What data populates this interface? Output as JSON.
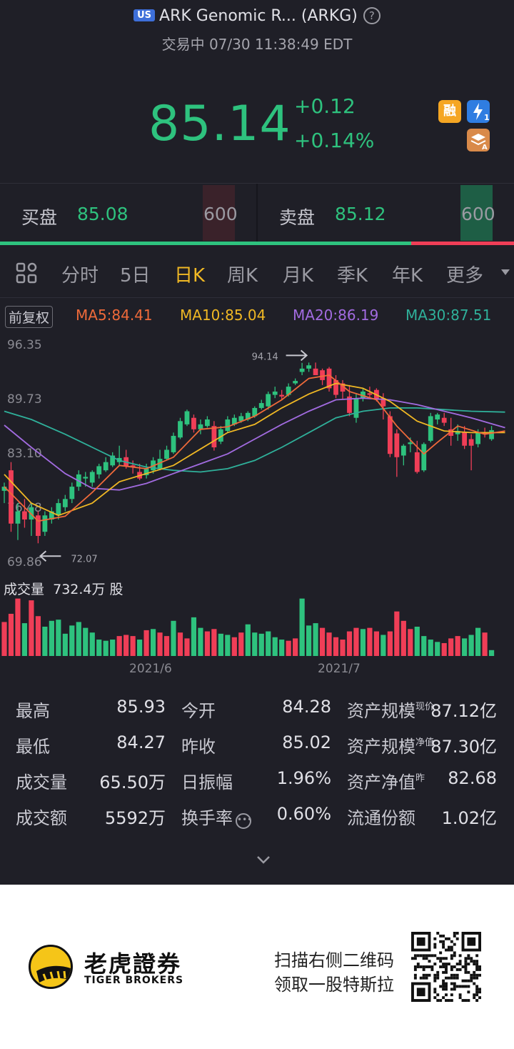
{
  "header": {
    "market_badge": "US",
    "title": "ARK Genomic R... (ARKG)",
    "help_icon": "help-icon",
    "status": "交易中 07/30 11:38:49 EDT",
    "price": "85.14",
    "change": "+0.12",
    "change_pct": "+0.14%",
    "badges": [
      {
        "name": "margin-badge-icon",
        "text": "融",
        "color": "#f5a623"
      },
      {
        "name": "level1-quote-icon",
        "text": "⚡1",
        "color": "#2f7de1"
      },
      {
        "name": "layers-a-icon",
        "text": "A",
        "color": "#d98a4a"
      }
    ]
  },
  "orderbook": {
    "bid_label": "买盘",
    "bid_price": "85.08",
    "bid_qty": "600",
    "ask_label": "卖盘",
    "ask_price": "85.12",
    "ask_qty": "600"
  },
  "tabs": [
    "分时",
    "5日",
    "日K",
    "周K",
    "月K",
    "季K",
    "年K",
    "更多"
  ],
  "active_tab": "日K",
  "ma": {
    "adjust_label": "前复权",
    "ma5": "MA5:84.41",
    "ma10": "MA10:85.04",
    "ma20": "MA20:86.19",
    "ma30": "MA30:87.51",
    "colors": {
      "ma5": "#ef6a3a",
      "ma10": "#f0b824",
      "ma20": "#a26be0",
      "ma30": "#2fb09a"
    }
  },
  "chart_data": {
    "type": "candlestick",
    "y_ticks": [
      "96.35",
      "89.73",
      "83.10",
      "76.48",
      "69.86"
    ],
    "x_ticks": [
      "2021/6",
      "2021/7"
    ],
    "high_marker": "94.14",
    "low_marker": "72.07",
    "volume_label": "成交量",
    "volume_value": "732.4万 股",
    "ylim": [
      69.86,
      96.35
    ],
    "up_color": "#2ec27e",
    "down_color": "#f03e57",
    "candles": [
      {
        "o": 78.5,
        "h": 79.5,
        "l": 77,
        "c": 79
      },
      {
        "o": 81,
        "h": 82,
        "l": 73.5,
        "c": 74.5
      },
      {
        "o": 74.5,
        "h": 77,
        "l": 72.5,
        "c": 76
      },
      {
        "o": 76,
        "h": 77.5,
        "l": 74,
        "c": 75
      },
      {
        "o": 75,
        "h": 77,
        "l": 73,
        "c": 76.5
      },
      {
        "o": 75.5,
        "h": 76,
        "l": 72.1,
        "c": 73
      },
      {
        "o": 73.5,
        "h": 76,
        "l": 73,
        "c": 75.5
      },
      {
        "o": 75,
        "h": 76.5,
        "l": 74.5,
        "c": 76
      },
      {
        "o": 75.5,
        "h": 77.5,
        "l": 75,
        "c": 77
      },
      {
        "o": 76.5,
        "h": 78,
        "l": 76,
        "c": 77.5
      },
      {
        "o": 77.5,
        "h": 79.5,
        "l": 77,
        "c": 79
      },
      {
        "o": 79,
        "h": 81,
        "l": 78.5,
        "c": 80.5
      },
      {
        "o": 80,
        "h": 80.8,
        "l": 79,
        "c": 80.2
      },
      {
        "o": 79.5,
        "h": 81,
        "l": 79,
        "c": 80.8
      },
      {
        "o": 80.5,
        "h": 81.8,
        "l": 80,
        "c": 81.5
      },
      {
        "o": 81,
        "h": 82.6,
        "l": 80.8,
        "c": 82
      },
      {
        "o": 81.6,
        "h": 83.2,
        "l": 81.4,
        "c": 82.8
      },
      {
        "o": 82,
        "h": 84,
        "l": 81.6,
        "c": 82.5
      },
      {
        "o": 82.6,
        "h": 83.5,
        "l": 81.2,
        "c": 81.5
      },
      {
        "o": 81.6,
        "h": 82.2,
        "l": 80.6,
        "c": 81.4
      },
      {
        "o": 80.8,
        "h": 81.8,
        "l": 79.8,
        "c": 80
      },
      {
        "o": 80.4,
        "h": 81.8,
        "l": 80,
        "c": 81.2
      },
      {
        "o": 81,
        "h": 82.6,
        "l": 80.6,
        "c": 82.2
      },
      {
        "o": 81.2,
        "h": 83.5,
        "l": 81,
        "c": 82.4
      },
      {
        "o": 82.4,
        "h": 84,
        "l": 82.2,
        "c": 83.5
      },
      {
        "o": 83.2,
        "h": 85.6,
        "l": 83,
        "c": 85.2
      },
      {
        "o": 85,
        "h": 87.4,
        "l": 84.8,
        "c": 87
      },
      {
        "o": 86.6,
        "h": 88.4,
        "l": 86.4,
        "c": 88.2
      },
      {
        "o": 87.4,
        "h": 87.8,
        "l": 85.6,
        "c": 86
      },
      {
        "o": 86,
        "h": 87.2,
        "l": 85.4,
        "c": 86.6
      },
      {
        "o": 86.4,
        "h": 87.6,
        "l": 86.2,
        "c": 87.2
      },
      {
        "o": 86.4,
        "h": 87,
        "l": 83.4,
        "c": 83.8
      },
      {
        "o": 84.5,
        "h": 86.4,
        "l": 84.2,
        "c": 86
      },
      {
        "o": 85.8,
        "h": 87.6,
        "l": 85.6,
        "c": 87.2
      },
      {
        "o": 86.6,
        "h": 87.8,
        "l": 86.4,
        "c": 87.4
      },
      {
        "o": 87,
        "h": 88,
        "l": 86.8,
        "c": 87.6
      },
      {
        "o": 87.2,
        "h": 88.2,
        "l": 87,
        "c": 88
      },
      {
        "o": 87.6,
        "h": 88.8,
        "l": 87.4,
        "c": 88.6
      },
      {
        "o": 88.6,
        "h": 89.6,
        "l": 88.4,
        "c": 89.2
      },
      {
        "o": 88.8,
        "h": 90.6,
        "l": 88.4,
        "c": 90.3
      },
      {
        "o": 90.2,
        "h": 91.2,
        "l": 89.8,
        "c": 90.6
      },
      {
        "o": 90.2,
        "h": 90.8,
        "l": 89.6,
        "c": 90
      },
      {
        "o": 90.2,
        "h": 91.6,
        "l": 90,
        "c": 91.2
      },
      {
        "o": 91.6,
        "h": 92.2,
        "l": 91.4,
        "c": 91.9
      },
      {
        "o": 93,
        "h": 94.1,
        "l": 92.6,
        "c": 93.4
      },
      {
        "o": 93.4,
        "h": 94.14,
        "l": 93,
        "c": 93.8
      },
      {
        "o": 93.4,
        "h": 94.14,
        "l": 92.6,
        "c": 92.6
      },
      {
        "o": 93.2,
        "h": 93.4,
        "l": 91.4,
        "c": 92
      },
      {
        "o": 93.4,
        "h": 93.6,
        "l": 90.6,
        "c": 91
      },
      {
        "o": 92,
        "h": 92.6,
        "l": 89.8,
        "c": 90.2
      },
      {
        "o": 91.6,
        "h": 92,
        "l": 89.6,
        "c": 90.6
      },
      {
        "o": 90,
        "h": 91.4,
        "l": 87.6,
        "c": 88
      },
      {
        "o": 87.4,
        "h": 90.4,
        "l": 86.8,
        "c": 89.8
      },
      {
        "o": 89.8,
        "h": 91,
        "l": 89.4,
        "c": 90.6
      },
      {
        "o": 90.4,
        "h": 91.2,
        "l": 89.8,
        "c": 90.2
      },
      {
        "o": 90.8,
        "h": 91,
        "l": 89.4,
        "c": 89.6
      },
      {
        "o": 89.8,
        "h": 90.4,
        "l": 87.2,
        "c": 88.8
      },
      {
        "o": 87.6,
        "h": 88.2,
        "l": 82.6,
        "c": 83
      },
      {
        "o": 85.5,
        "h": 86,
        "l": 80.2,
        "c": 82.6
      },
      {
        "o": 82.8,
        "h": 84.2,
        "l": 81.6,
        "c": 84
      },
      {
        "o": 84.2,
        "h": 85,
        "l": 83.2,
        "c": 84.4
      },
      {
        "o": 83.2,
        "h": 84.6,
        "l": 80.6,
        "c": 80.8
      },
      {
        "o": 81,
        "h": 84.4,
        "l": 80.8,
        "c": 84.2
      },
      {
        "o": 84.6,
        "h": 88,
        "l": 84.4,
        "c": 87.6
      },
      {
        "o": 87.2,
        "h": 88,
        "l": 86.6,
        "c": 87.8
      },
      {
        "o": 87.4,
        "h": 88,
        "l": 86.4,
        "c": 86.8
      },
      {
        "o": 86,
        "h": 87.4,
        "l": 84,
        "c": 85.2
      },
      {
        "o": 85.4,
        "h": 86.6,
        "l": 84.6,
        "c": 85.8
      },
      {
        "o": 85.6,
        "h": 86.4,
        "l": 83.6,
        "c": 84
      },
      {
        "o": 84.8,
        "h": 85.4,
        "l": 81,
        "c": 84
      },
      {
        "o": 84.2,
        "h": 86,
        "l": 83.8,
        "c": 85.6
      },
      {
        "o": 85.6,
        "h": 86.2,
        "l": 85,
        "c": 85.4
      },
      {
        "o": 84.8,
        "h": 86.4,
        "l": 84.6,
        "c": 85.9
      }
    ],
    "volumes": [
      {
        "v": 0.58,
        "up": false
      },
      {
        "v": 0.72,
        "up": false
      },
      {
        "v": 0.98,
        "up": false
      },
      {
        "v": 0.56,
        "up": true
      },
      {
        "v": 0.95,
        "up": false
      },
      {
        "v": 0.68,
        "up": false
      },
      {
        "v": 0.5,
        "up": true
      },
      {
        "v": 0.6,
        "up": true
      },
      {
        "v": 0.62,
        "up": true
      },
      {
        "v": 0.38,
        "up": true
      },
      {
        "v": 0.52,
        "up": true
      },
      {
        "v": 0.58,
        "up": true
      },
      {
        "v": 0.48,
        "up": true
      },
      {
        "v": 0.4,
        "up": true
      },
      {
        "v": 0.28,
        "up": true
      },
      {
        "v": 0.26,
        "up": true
      },
      {
        "v": 0.28,
        "up": true
      },
      {
        "v": 0.34,
        "up": false
      },
      {
        "v": 0.36,
        "up": false
      },
      {
        "v": 0.34,
        "up": false
      },
      {
        "v": 0.28,
        "up": true
      },
      {
        "v": 0.44,
        "up": false
      },
      {
        "v": 0.46,
        "up": true
      },
      {
        "v": 0.4,
        "up": false
      },
      {
        "v": 0.34,
        "up": false
      },
      {
        "v": 0.6,
        "up": true
      },
      {
        "v": 0.4,
        "up": false
      },
      {
        "v": 0.3,
        "up": false
      },
      {
        "v": 0.66,
        "up": true
      },
      {
        "v": 0.48,
        "up": true
      },
      {
        "v": 0.42,
        "up": false
      },
      {
        "v": 0.46,
        "up": false
      },
      {
        "v": 0.38,
        "up": true
      },
      {
        "v": 0.36,
        "up": true
      },
      {
        "v": 0.32,
        "up": false
      },
      {
        "v": 0.4,
        "up": false
      },
      {
        "v": 0.54,
        "up": true
      },
      {
        "v": 0.4,
        "up": true
      },
      {
        "v": 0.38,
        "up": true
      },
      {
        "v": 0.42,
        "up": true
      },
      {
        "v": 0.32,
        "up": true
      },
      {
        "v": 0.28,
        "up": true
      },
      {
        "v": 0.26,
        "up": false
      },
      {
        "v": 0.3,
        "up": false
      },
      {
        "v": 0.98,
        "up": true
      },
      {
        "v": 0.52,
        "up": true
      },
      {
        "v": 0.56,
        "up": true
      },
      {
        "v": 0.48,
        "up": false
      },
      {
        "v": 0.4,
        "up": false
      },
      {
        "v": 0.32,
        "up": false
      },
      {
        "v": 0.28,
        "up": false
      },
      {
        "v": 0.42,
        "up": false
      },
      {
        "v": 0.48,
        "up": false
      },
      {
        "v": 0.46,
        "up": true
      },
      {
        "v": 0.48,
        "up": false
      },
      {
        "v": 0.42,
        "up": false
      },
      {
        "v": 0.36,
        "up": true
      },
      {
        "v": 0.42,
        "up": false
      },
      {
        "v": 0.76,
        "up": false
      },
      {
        "v": 0.6,
        "up": false
      },
      {
        "v": 0.46,
        "up": false
      },
      {
        "v": 0.5,
        "up": true
      },
      {
        "v": 0.34,
        "up": true
      },
      {
        "v": 0.28,
        "up": true
      },
      {
        "v": 0.24,
        "up": true
      },
      {
        "v": 0.22,
        "up": false
      },
      {
        "v": 0.3,
        "up": false
      },
      {
        "v": 0.34,
        "up": false
      },
      {
        "v": 0.3,
        "up": true
      },
      {
        "v": 0.36,
        "up": true
      },
      {
        "v": 0.48,
        "up": true
      },
      {
        "v": 0.4,
        "up": false
      },
      {
        "v": 0.1,
        "up": true
      }
    ],
    "ma5": [
      [
        0,
        79
      ],
      [
        5,
        74.8
      ],
      [
        9,
        75.4
      ],
      [
        13,
        78.3
      ],
      [
        17,
        81.6
      ],
      [
        21,
        81.2
      ],
      [
        25,
        82.6
      ],
      [
        29,
        86
      ],
      [
        33,
        86.3
      ],
      [
        37,
        87.6
      ],
      [
        41,
        89.6
      ],
      [
        45,
        92.2
      ],
      [
        48,
        92.6
      ],
      [
        51,
        90.6
      ],
      [
        55,
        89.6
      ],
      [
        58,
        86.4
      ],
      [
        62,
        83
      ],
      [
        64,
        84.4
      ],
      [
        67,
        86.4
      ],
      [
        71,
        85.4
      ],
      [
        74,
        85.8
      ]
    ],
    "ma10": [
      [
        0,
        80.5
      ],
      [
        4,
        77
      ],
      [
        8,
        75.5
      ],
      [
        13,
        77
      ],
      [
        17,
        79.6
      ],
      [
        21,
        80.6
      ],
      [
        25,
        81.6
      ],
      [
        29,
        83.6
      ],
      [
        33,
        85.6
      ],
      [
        37,
        86.6
      ],
      [
        41,
        88.6
      ],
      [
        45,
        90.3
      ],
      [
        49,
        91.6
      ],
      [
        53,
        91
      ],
      [
        57,
        89.4
      ],
      [
        61,
        87
      ],
      [
        65,
        85.8
      ],
      [
        69,
        85.6
      ],
      [
        74,
        85.6
      ]
    ],
    "ma20": [
      [
        0,
        86.5
      ],
      [
        4,
        83.8
      ],
      [
        9,
        80.6
      ],
      [
        13,
        78.8
      ],
      [
        17,
        78.6
      ],
      [
        21,
        79.4
      ],
      [
        25,
        80.6
      ],
      [
        29,
        81.8
      ],
      [
        33,
        83
      ],
      [
        37,
        84.8
      ],
      [
        41,
        86.6
      ],
      [
        45,
        88.2
      ],
      [
        49,
        89.6
      ],
      [
        53,
        89.8
      ],
      [
        57,
        89.6
      ],
      [
        61,
        89
      ],
      [
        65,
        88.2
      ],
      [
        69,
        87.4
      ],
      [
        74,
        86.2
      ]
    ],
    "ma30": [
      [
        0,
        88.2
      ],
      [
        4,
        87.2
      ],
      [
        9,
        85.4
      ],
      [
        13,
        83.8
      ],
      [
        17,
        82.2
      ],
      [
        21,
        81.4
      ],
      [
        25,
        81
      ],
      [
        29,
        80.8
      ],
      [
        33,
        81.2
      ],
      [
        37,
        82.2
      ],
      [
        41,
        83.8
      ],
      [
        45,
        85.6
      ],
      [
        49,
        87.4
      ],
      [
        53,
        88.2
      ],
      [
        57,
        88.6
      ],
      [
        61,
        88.6
      ],
      [
        65,
        88.4
      ],
      [
        69,
        88.2
      ],
      [
        74,
        88.1
      ]
    ]
  },
  "stats": {
    "rows": [
      [
        {
          "label": "最高",
          "value": "85.93"
        },
        {
          "label": "今开",
          "value": "84.28"
        },
        {
          "label": "资产规模",
          "sup": "现价",
          "value": "87.12亿"
        }
      ],
      [
        {
          "label": "最低",
          "value": "84.27"
        },
        {
          "label": "昨收",
          "value": "85.02"
        },
        {
          "label": "资产规模",
          "sup": "净值",
          "value": "87.30亿"
        }
      ],
      [
        {
          "label": "成交量",
          "value": "65.50万"
        },
        {
          "label": "日振幅",
          "value": "1.96%"
        },
        {
          "label": "资产净值",
          "sup": "昨",
          "value": "82.68"
        }
      ],
      [
        {
          "label": "成交额",
          "value": "5592万"
        },
        {
          "label": "换手率",
          "value": "0.60%",
          "info_icon": "more-info-icon"
        },
        {
          "label": "流通份额",
          "value": "1.02亿"
        }
      ]
    ]
  },
  "footer": {
    "brand_cn": "老虎證券",
    "brand_en": "TIGER BROKERS",
    "promo_line1": "扫描右侧二维码",
    "promo_line2": "领取一股特斯拉"
  }
}
